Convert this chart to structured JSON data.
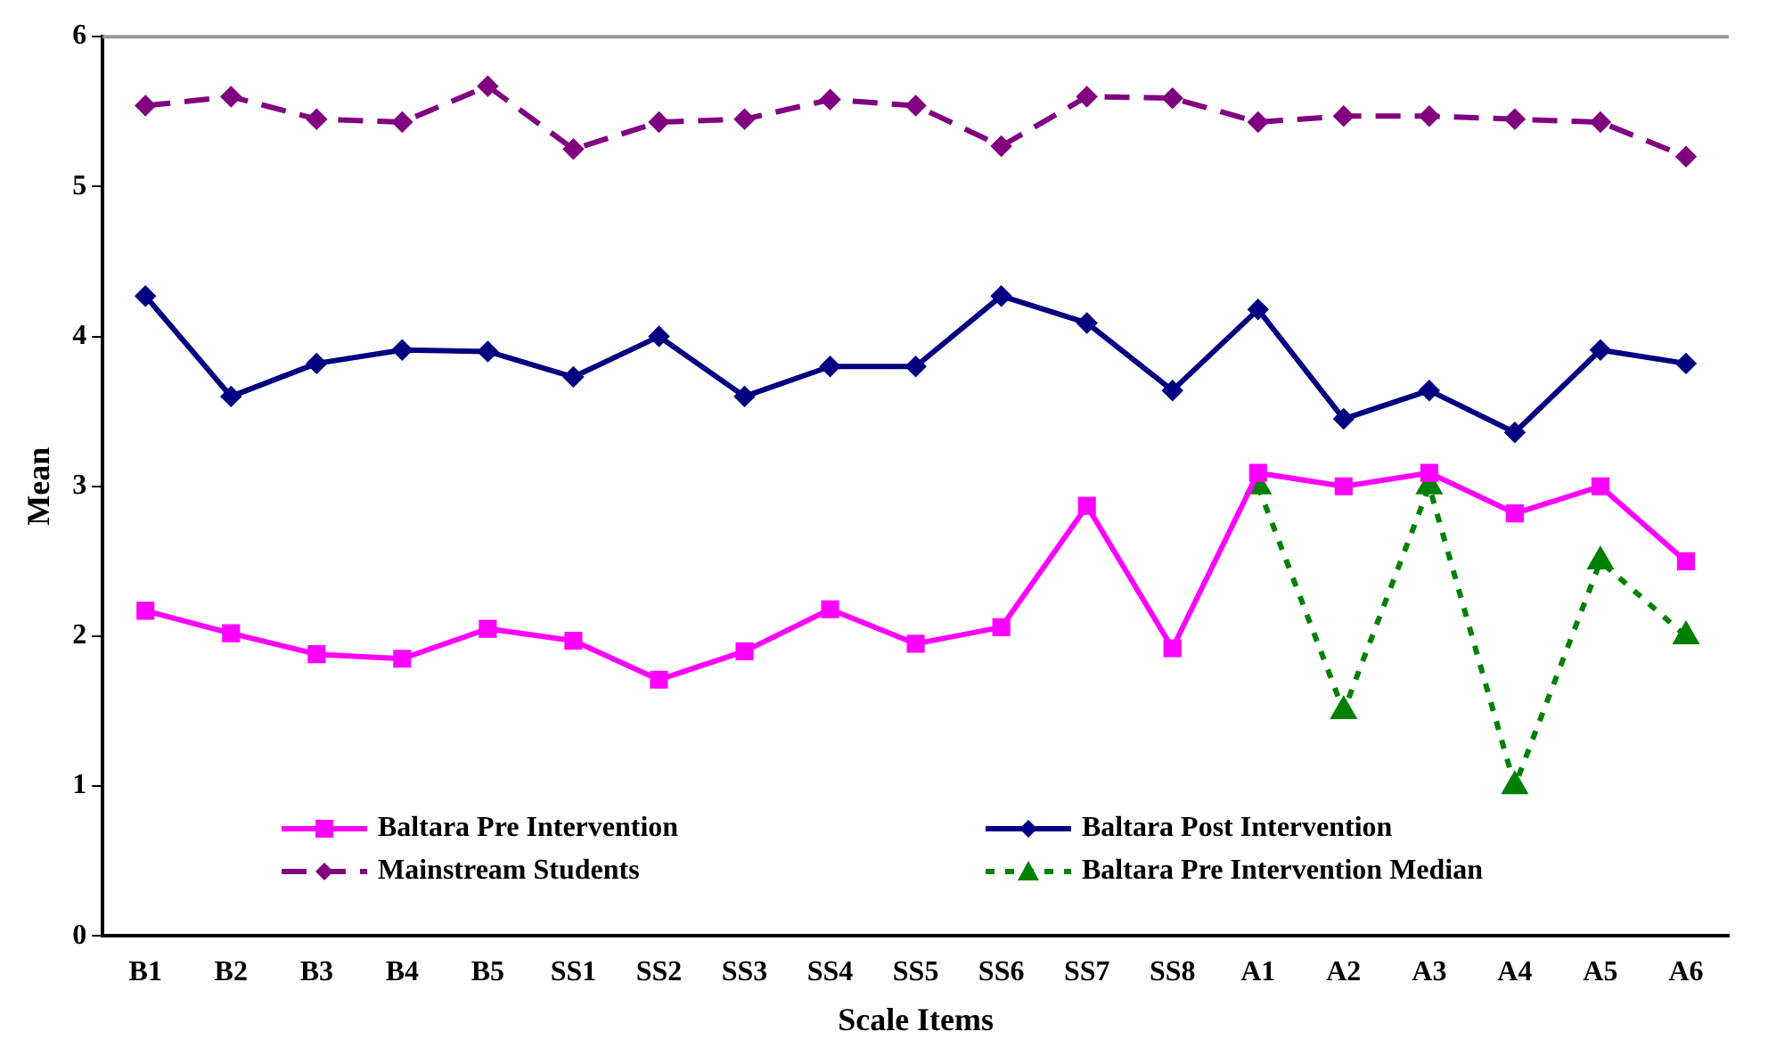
{
  "chart_data": {
    "type": "line",
    "xlabel": "Scale Items",
    "ylabel": "Mean",
    "categories": [
      "B1",
      "B2",
      "B3",
      "B4",
      "B5",
      "SS1",
      "SS2",
      "SS3",
      "SS4",
      "SS5",
      "SS6",
      "SS7",
      "SS8",
      "A1",
      "A2",
      "A3",
      "A4",
      "A5",
      "A6"
    ],
    "series": [
      {
        "name": "Baltara Pre Intervention",
        "color": "#ff00ff",
        "marker": "square",
        "line_style": "solid",
        "values": [
          2.17,
          2.02,
          1.88,
          1.85,
          2.05,
          1.97,
          1.71,
          1.9,
          2.18,
          1.95,
          2.06,
          2.87,
          1.92,
          3.09,
          3.0,
          3.09,
          2.82,
          3.0,
          2.5
        ]
      },
      {
        "name": "Baltara Post Intervention",
        "color": "#000080",
        "marker": "diamond",
        "line_style": "solid",
        "values": [
          4.27,
          3.6,
          3.82,
          3.91,
          3.9,
          3.73,
          4.0,
          3.6,
          3.8,
          3.8,
          4.27,
          4.09,
          3.64,
          4.18,
          3.45,
          3.64,
          3.36,
          3.91,
          3.82
        ]
      },
      {
        "name": "Mainstream Students",
        "color": "#800080",
        "marker": "diamond",
        "line_style": "dashed",
        "values": [
          5.54,
          5.6,
          5.45,
          5.43,
          5.67,
          5.25,
          5.43,
          5.45,
          5.58,
          5.54,
          5.27,
          5.6,
          5.59,
          5.43,
          5.47,
          5.47,
          5.45,
          5.43,
          5.2
        ]
      },
      {
        "name": "Baltara Pre Intervention Median",
        "color": "#008000",
        "marker": "triangle",
        "line_style": "dotted",
        "values": [
          null,
          null,
          null,
          null,
          null,
          null,
          null,
          null,
          null,
          null,
          null,
          null,
          null,
          3,
          1.5,
          3,
          1,
          2.5,
          2
        ]
      }
    ],
    "ylim": [
      0,
      6
    ],
    "yticks": [
      0,
      1,
      2,
      3,
      4,
      5,
      6
    ],
    "grid": false,
    "legend": "bottom"
  }
}
